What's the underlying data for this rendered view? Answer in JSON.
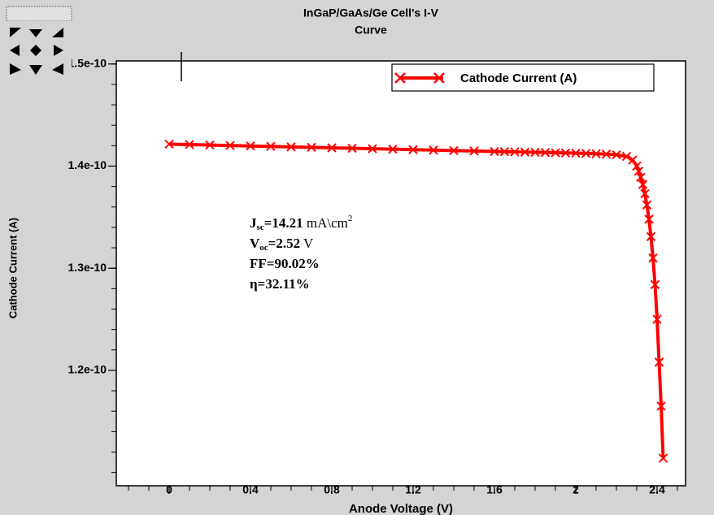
{
  "chart_data": {
    "type": "line",
    "title": "InGaP/GaAs/Ge Cell's I-V",
    "subtitle": "Curve",
    "x_label": "Anode Voltage (V)",
    "y_label": "Cathode Current (A)",
    "x": [
      0,
      0.1,
      0.2,
      0.3,
      0.4,
      0.5,
      0.6,
      0.7,
      0.8,
      0.9,
      1.0,
      1.1,
      1.2,
      1.3,
      1.4,
      1.5,
      1.6,
      1.65,
      1.7,
      1.75,
      1.8,
      1.85,
      1.9,
      1.95,
      2.0,
      2.05,
      2.1,
      2.15,
      2.2,
      2.25,
      2.28,
      2.3,
      2.31,
      2.32,
      2.33,
      2.34,
      2.35,
      2.36,
      2.37,
      2.38,
      2.39,
      2.4,
      2.41,
      2.42,
      2.43
    ],
    "series": [
      {
        "name": "Cathode Current (A)",
        "color": "#ff0000",
        "values": [
          1.4215e-10,
          1.4211e-10,
          1.4206e-10,
          1.4202e-10,
          1.4197e-10,
          1.4193e-10,
          1.4188e-10,
          1.4184e-10,
          1.4179e-10,
          1.4175e-10,
          1.417e-10,
          1.4166e-10,
          1.4161e-10,
          1.4157e-10,
          1.4152e-10,
          1.4148e-10,
          1.4143e-10,
          1.4141e-10,
          1.4139e-10,
          1.4137e-10,
          1.4135e-10,
          1.4133e-10,
          1.4131e-10,
          1.4129e-10,
          1.4127e-10,
          1.4124e-10,
          1.4121e-10,
          1.4117e-10,
          1.4111e-10,
          1.4095e-10,
          1.406e-10,
          1.4e-10,
          1.395e-10,
          1.389e-10,
          1.382e-10,
          1.373e-10,
          1.362e-10,
          1.348e-10,
          1.331e-10,
          1.31e-10,
          1.284e-10,
          1.25e-10,
          1.208e-10,
          1.165e-10,
          1.114e-10
        ]
      }
    ],
    "xlim": [
      -0.26,
      2.54
    ],
    "xticks": [
      0,
      0.4,
      0.8,
      1.2,
      1.6,
      2,
      2.4
    ],
    "ylim": [
      1.087e-10,
      1.503e-10
    ],
    "yticks": [
      1.2e-10,
      1.3e-10,
      1.4e-10,
      1.5e-10
    ],
    "legend": "top-right",
    "annotations": [
      {
        "main": "J",
        "sub": "sc",
        "rest": "=14.21 mA\\cm",
        "sup": "2"
      },
      {
        "main": "V",
        "sub": "oc",
        "rest": "=2.52 V"
      },
      {
        "main": "FF=90.02%"
      },
      {
        "main": "η=32.11%"
      }
    ]
  }
}
